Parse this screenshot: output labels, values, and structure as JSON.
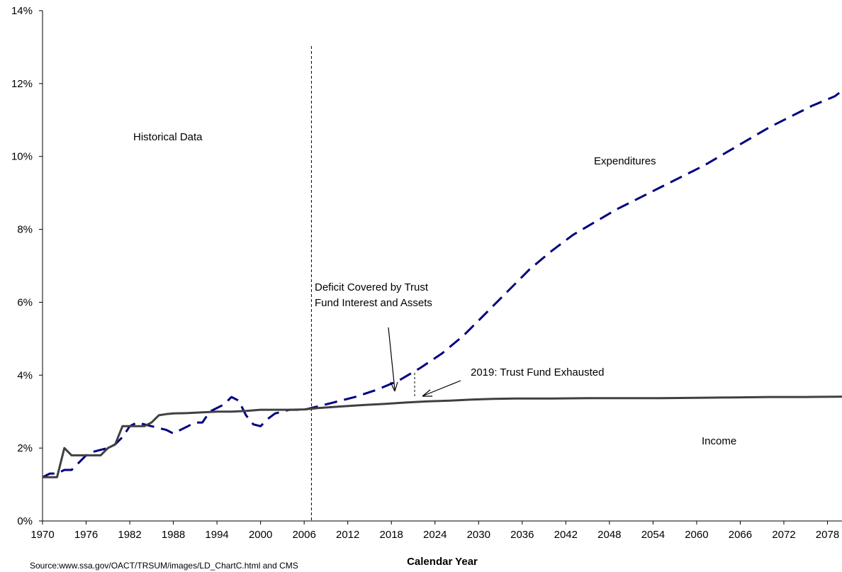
{
  "chart_data": {
    "type": "line",
    "title": "",
    "xlabel": "Calendar Year",
    "ylabel": "",
    "xlim": [
      1970,
      2080
    ],
    "ylim": [
      0,
      14
    ],
    "x_ticks": [
      "1970",
      "1976",
      "1982",
      "1988",
      "1994",
      "2000",
      "2006",
      "2012",
      "2018",
      "2024",
      "2030",
      "2036",
      "2042",
      "2048",
      "2054",
      "2060",
      "2066",
      "2072",
      "2078"
    ],
    "y_ticks": [
      "0%",
      "2%",
      "4%",
      "6%",
      "8%",
      "10%",
      "12%",
      "14%"
    ],
    "grid": false,
    "legend": "none",
    "series": [
      {
        "name": "Expenditures",
        "color": "#000080",
        "dash": true,
        "points": [
          [
            1970,
            1.2
          ],
          [
            1971,
            1.3
          ],
          [
            1972,
            1.3
          ],
          [
            1973,
            1.4
          ],
          [
            1974,
            1.4
          ],
          [
            1975,
            1.6
          ],
          [
            1976,
            1.8
          ],
          [
            1977,
            1.9
          ],
          [
            1978,
            1.95
          ],
          [
            1979,
            2.0
          ],
          [
            1980,
            2.1
          ],
          [
            1981,
            2.3
          ],
          [
            1982,
            2.6
          ],
          [
            1983,
            2.7
          ],
          [
            1984,
            2.65
          ],
          [
            1985,
            2.6
          ],
          [
            1986,
            2.55
          ],
          [
            1987,
            2.5
          ],
          [
            1988,
            2.4
          ],
          [
            1989,
            2.5
          ],
          [
            1990,
            2.6
          ],
          [
            1991,
            2.7
          ],
          [
            1992,
            2.7
          ],
          [
            1993,
            3.0
          ],
          [
            1994,
            3.1
          ],
          [
            1995,
            3.2
          ],
          [
            1996,
            3.4
          ],
          [
            1997,
            3.3
          ],
          [
            1998,
            2.9
          ],
          [
            1999,
            2.65
          ],
          [
            2000,
            2.6
          ],
          [
            2001,
            2.8
          ],
          [
            2002,
            2.95
          ],
          [
            2003,
            3.0
          ],
          [
            2004,
            3.05
          ],
          [
            2005,
            3.05
          ],
          [
            2006,
            3.05
          ],
          [
            2007,
            3.1
          ],
          [
            2010,
            3.25
          ],
          [
            2013,
            3.4
          ],
          [
            2016,
            3.6
          ],
          [
            2019,
            3.85
          ],
          [
            2022,
            4.2
          ],
          [
            2025,
            4.6
          ],
          [
            2028,
            5.1
          ],
          [
            2031,
            5.7
          ],
          [
            2034,
            6.3
          ],
          [
            2037,
            6.9
          ],
          [
            2040,
            7.4
          ],
          [
            2043,
            7.85
          ],
          [
            2046,
            8.2
          ],
          [
            2049,
            8.55
          ],
          [
            2052,
            8.85
          ],
          [
            2055,
            9.15
          ],
          [
            2058,
            9.45
          ],
          [
            2061,
            9.75
          ],
          [
            2064,
            10.1
          ],
          [
            2067,
            10.45
          ],
          [
            2070,
            10.8
          ],
          [
            2073,
            11.1
          ],
          [
            2076,
            11.4
          ],
          [
            2079,
            11.65
          ],
          [
            2080,
            11.8
          ]
        ]
      },
      {
        "name": "Income",
        "color": "#404040",
        "dash": false,
        "points": [
          [
            1970,
            1.2
          ],
          [
            1971,
            1.2
          ],
          [
            1972,
            1.2
          ],
          [
            1973,
            2.0
          ],
          [
            1974,
            1.8
          ],
          [
            1975,
            1.8
          ],
          [
            1976,
            1.8
          ],
          [
            1977,
            1.8
          ],
          [
            1978,
            1.8
          ],
          [
            1979,
            2.0
          ],
          [
            1980,
            2.1
          ],
          [
            1981,
            2.6
          ],
          [
            1982,
            2.6
          ],
          [
            1983,
            2.6
          ],
          [
            1984,
            2.6
          ],
          [
            1985,
            2.7
          ],
          [
            1986,
            2.9
          ],
          [
            1987,
            2.93
          ],
          [
            1988,
            2.95
          ],
          [
            1990,
            2.96
          ],
          [
            1992,
            2.98
          ],
          [
            1994,
            3.0
          ],
          [
            1996,
            3.0
          ],
          [
            1998,
            3.02
          ],
          [
            2000,
            3.05
          ],
          [
            2002,
            3.05
          ],
          [
            2004,
            3.05
          ],
          [
            2006,
            3.06
          ],
          [
            2008,
            3.1
          ],
          [
            2011,
            3.14
          ],
          [
            2014,
            3.18
          ],
          [
            2017,
            3.21
          ],
          [
            2020,
            3.25
          ],
          [
            2023,
            3.28
          ],
          [
            2026,
            3.3
          ],
          [
            2029,
            3.33
          ],
          [
            2032,
            3.35
          ],
          [
            2035,
            3.36
          ],
          [
            2040,
            3.36
          ],
          [
            2045,
            3.37
          ],
          [
            2050,
            3.37
          ],
          [
            2055,
            3.37
          ],
          [
            2060,
            3.38
          ],
          [
            2065,
            3.39
          ],
          [
            2070,
            3.4
          ],
          [
            2075,
            3.4
          ],
          [
            2080,
            3.41
          ]
        ]
      }
    ],
    "annotations": {
      "historical": "Historical Data",
      "expenditures": "Expenditures",
      "income": "Income",
      "deficit_line1": "Deficit Covered by Trust",
      "deficit_line2": "Fund Interest and Assets",
      "exhausted": "2019: Trust Fund Exhausted"
    },
    "historical_divider_year": 2007
  },
  "source": "Source:www.ssa.gov/OACT/TRSUM/images/LD_ChartC.html and CMS"
}
